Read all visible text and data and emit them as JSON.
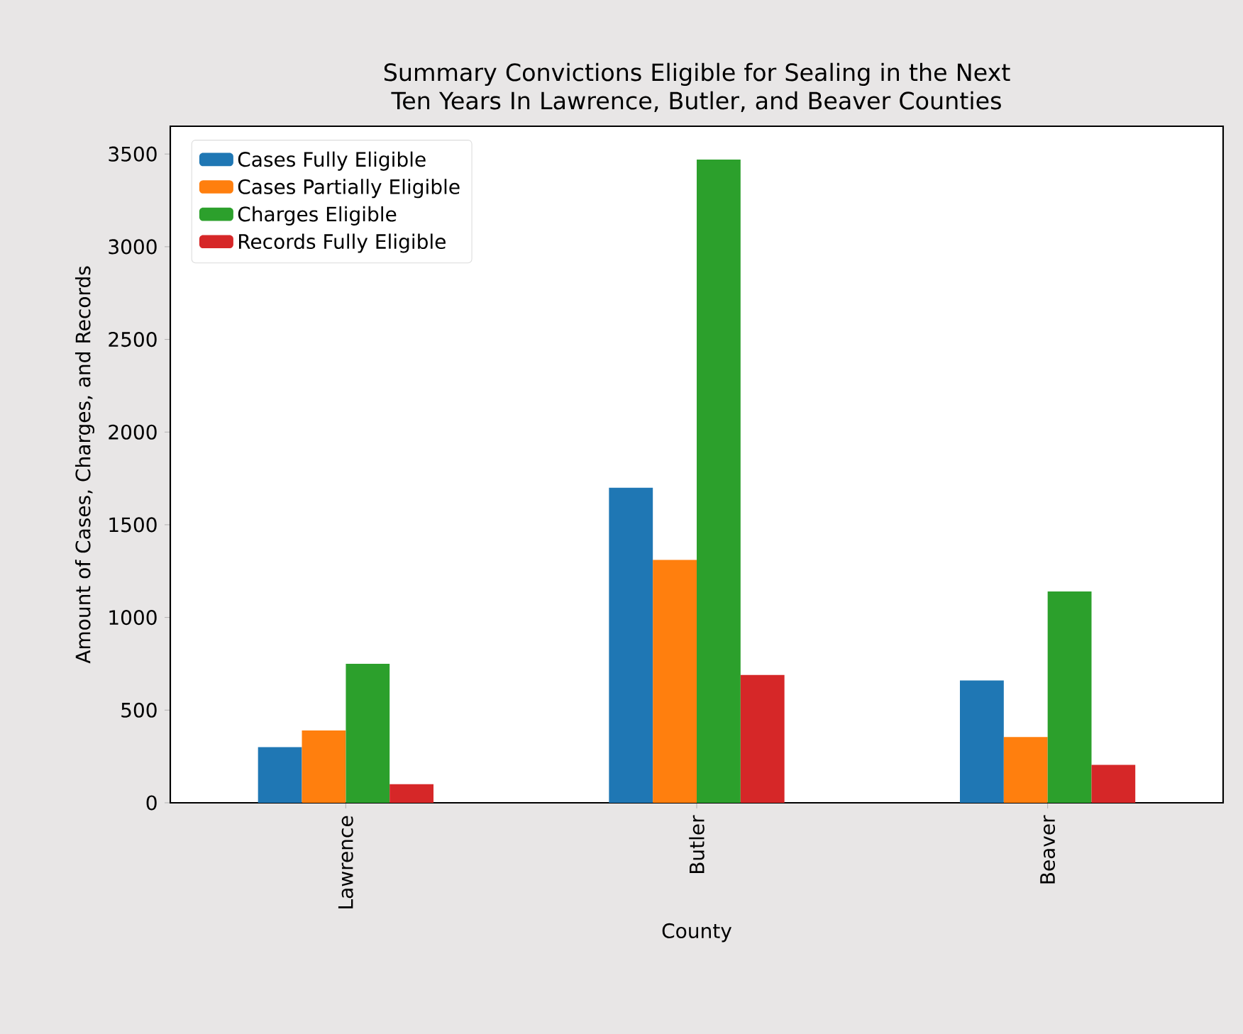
{
  "chart_data": {
    "type": "bar",
    "title": "Summary Convictions Eligible for Sealing in the Next Ten Years In Lawrence, Butler, and Beaver Counties",
    "xlabel": "County",
    "ylabel": "Amount of Cases, Charges, and Records",
    "categories": [
      "Lawrence",
      "Butler",
      "Beaver"
    ],
    "series": [
      {
        "name": "Cases Fully Eligible",
        "color": "#1f77b4",
        "values": [
          300,
          1700,
          660
        ]
      },
      {
        "name": "Cases Partially Eligible",
        "color": "#ff7f0e",
        "values": [
          390,
          1310,
          355
        ]
      },
      {
        "name": "Charges Eligible",
        "color": "#2ca02c",
        "values": [
          750,
          3470,
          1140
        ]
      },
      {
        "name": "Records Fully Eligible",
        "color": "#d62728",
        "values": [
          100,
          690,
          205
        ]
      }
    ],
    "ylim": [
      0,
      3650
    ],
    "yticks": [
      0,
      500,
      1000,
      1500,
      2000,
      2500,
      3000,
      3500
    ],
    "legend": "top left",
    "grid": false
  }
}
